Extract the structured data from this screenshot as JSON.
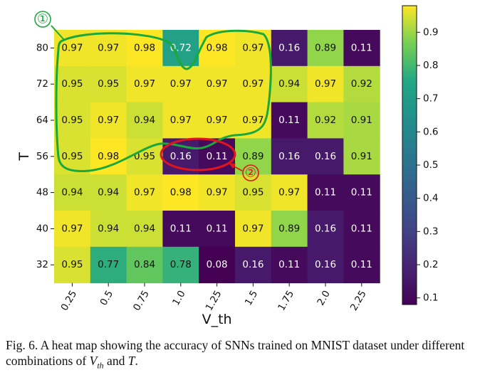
{
  "chart_data": {
    "type": "heatmap",
    "xlabel": "V_th",
    "ylabel": "T",
    "x_categories": [
      "0.25",
      "0.5",
      "0.75",
      "1.0",
      "1.25",
      "1.5",
      "1.75",
      "2.0",
      "2.25"
    ],
    "y_categories": [
      "80",
      "72",
      "64",
      "56",
      "48",
      "40",
      "32"
    ],
    "values": [
      [
        0.97,
        0.97,
        0.98,
        0.72,
        0.98,
        0.97,
        0.16,
        0.89,
        0.11
      ],
      [
        0.95,
        0.95,
        0.97,
        0.97,
        0.97,
        0.97,
        0.94,
        0.97,
        0.92
      ],
      [
        0.95,
        0.97,
        0.94,
        0.97,
        0.97,
        0.97,
        0.11,
        0.92,
        0.91
      ],
      [
        0.95,
        0.98,
        0.95,
        0.16,
        0.11,
        0.89,
        0.16,
        0.16,
        0.91
      ],
      [
        0.94,
        0.94,
        0.97,
        0.98,
        0.97,
        0.95,
        0.97,
        0.11,
        0.11
      ],
      [
        0.97,
        0.94,
        0.94,
        0.11,
        0.11,
        0.97,
        0.89,
        0.16,
        0.11
      ],
      [
        0.95,
        0.77,
        0.84,
        0.78,
        0.08,
        0.16,
        0.11,
        0.16,
        0.11
      ]
    ],
    "colormap": "viridis",
    "colorbar": {
      "min": 0.08,
      "max": 0.98,
      "ticks": [
        0.1,
        0.2,
        0.3,
        0.4,
        0.5,
        0.6,
        0.7,
        0.8,
        0.9
      ],
      "tick_labels": [
        "0.1",
        "0.2",
        "0.3",
        "0.4",
        "0.5",
        "0.6",
        "0.7",
        "0.8",
        "0.9"
      ]
    },
    "annotations": [
      {
        "label": "①",
        "color": "#1aa83a",
        "marks": "outline around high-accuracy region (T 64–80, V_th 0.25–1.5)"
      },
      {
        "label": "②",
        "color": "#e0141e",
        "marks": "ellipse around T=56, V_th 1.0–1.25"
      }
    ]
  },
  "caption": {
    "prefix": "Fig. 6.  A heat map showing the accuracy of SNNs trained on MNIST dataset under different combinations of ",
    "var1": "V",
    "var1_sub": "th",
    "middle": " and ",
    "var2": "T",
    "suffix": "."
  },
  "colors": {
    "annotation_green": "#1aa83a",
    "annotation_red": "#e0141e"
  }
}
